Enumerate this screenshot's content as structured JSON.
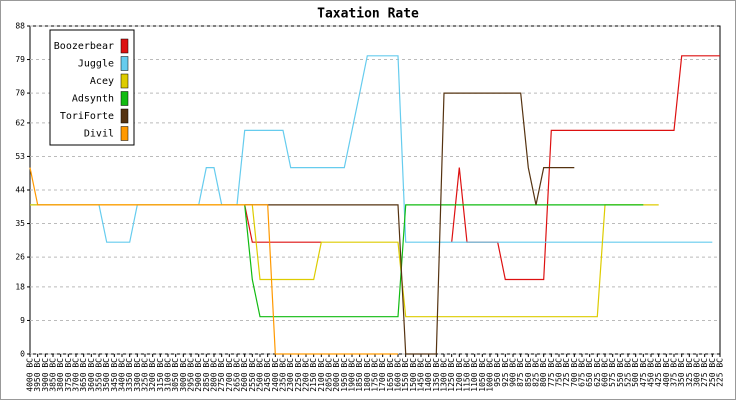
{
  "chart_data": {
    "type": "line",
    "title": "Taxation Rate",
    "categories": [
      "4000 BC",
      "3950 BC",
      "3900 BC",
      "3850 BC",
      "3800 BC",
      "3750 BC",
      "3700 BC",
      "3650 BC",
      "3600 BC",
      "3550 BC",
      "3500 BC",
      "3450 BC",
      "3400 BC",
      "3350 BC",
      "3300 BC",
      "3250 BC",
      "3200 BC",
      "3150 BC",
      "3100 BC",
      "3050 BC",
      "3000 BC",
      "2950 BC",
      "2900 BC",
      "2850 BC",
      "2800 BC",
      "2750 BC",
      "2700 BC",
      "2650 BC",
      "2600 BC",
      "2550 BC",
      "2500 BC",
      "2450 BC",
      "2400 BC",
      "2350 BC",
      "2300 BC",
      "2250 BC",
      "2200 BC",
      "2150 BC",
      "2100 BC",
      "2050 BC",
      "2000 BC",
      "1950 BC",
      "1900 BC",
      "1850 BC",
      "1800 BC",
      "1750 BC",
      "1700 BC",
      "1650 BC",
      "1600 BC",
      "1550 BC",
      "1500 BC",
      "1450 BC",
      "1400 BC",
      "1350 BC",
      "1300 BC",
      "1250 BC",
      "1200 BC",
      "1150 BC",
      "1100 BC",
      "1050 BC",
      "1000 BC",
      "950 BC",
      "925 BC",
      "900 BC",
      "875 BC",
      "850 BC",
      "825 BC",
      "800 BC",
      "775 BC",
      "750 BC",
      "725 BC",
      "700 BC",
      "675 BC",
      "650 BC",
      "625 BC",
      "600 BC",
      "575 BC",
      "550 BC",
      "525 BC",
      "500 BC",
      "475 BC",
      "450 BC",
      "425 BC",
      "400 BC",
      "375 BC",
      "350 BC",
      "325 BC",
      "300 BC",
      "275 BC",
      "250 BC",
      "225 BC"
    ],
    "series": [
      {
        "name": "Boozerbear",
        "color": "#dd1111",
        "values": [
          null,
          null,
          null,
          null,
          null,
          null,
          null,
          null,
          null,
          null,
          null,
          null,
          null,
          null,
          null,
          null,
          null,
          null,
          null,
          null,
          null,
          null,
          null,
          null,
          null,
          null,
          null,
          null,
          40,
          30,
          30,
          30,
          30,
          30,
          30,
          30,
          30,
          30,
          30,
          null,
          null,
          null,
          null,
          null,
          null,
          null,
          null,
          null,
          null,
          null,
          null,
          null,
          null,
          null,
          null,
          30,
          50,
          30,
          30,
          30,
          30,
          30,
          20,
          20,
          20,
          20,
          20,
          20,
          60,
          60,
          60,
          60,
          60,
          60,
          60,
          60,
          60,
          60,
          60,
          60,
          60,
          60,
          60,
          60,
          60,
          80,
          80,
          80,
          80,
          80,
          80
        ]
      },
      {
        "name": "Juggle",
        "color": "#66ccee",
        "values": [
          40,
          40,
          40,
          40,
          40,
          40,
          40,
          40,
          40,
          40,
          30,
          30,
          30,
          30,
          40,
          40,
          40,
          40,
          40,
          40,
          40,
          40,
          40,
          50,
          50,
          40,
          40,
          40,
          60,
          60,
          60,
          60,
          60,
          60,
          50,
          50,
          50,
          50,
          50,
          50,
          50,
          50,
          60,
          70,
          80,
          80,
          80,
          80,
          80,
          30,
          30,
          30,
          30,
          30,
          30,
          30,
          30,
          30,
          30,
          30,
          30,
          30,
          30,
          30,
          30,
          30,
          30,
          30,
          30,
          30,
          30,
          30,
          30,
          30,
          30,
          30,
          30,
          30,
          30,
          30,
          30,
          30,
          30,
          30,
          30,
          30,
          30,
          30,
          30,
          30,
          null
        ]
      },
      {
        "name": "Acey",
        "color": "#ddcc00",
        "values": [
          40,
          40,
          40,
          40,
          40,
          40,
          40,
          40,
          40,
          40,
          40,
          40,
          40,
          40,
          40,
          40,
          40,
          40,
          40,
          40,
          40,
          40,
          40,
          40,
          40,
          40,
          40,
          40,
          40,
          40,
          20,
          20,
          20,
          20,
          20,
          20,
          20,
          20,
          30,
          30,
          30,
          30,
          30,
          30,
          30,
          30,
          30,
          30,
          30,
          10,
          10,
          10,
          10,
          10,
          10,
          10,
          10,
          10,
          10,
          10,
          10,
          10,
          10,
          10,
          10,
          10,
          10,
          10,
          10,
          10,
          10,
          10,
          10,
          10,
          10,
          40,
          40,
          40,
          40,
          40,
          40,
          40,
          40,
          null,
          null,
          null,
          null,
          null,
          null,
          null,
          null
        ]
      },
      {
        "name": "Adsynth",
        "color": "#11bb11",
        "values": [
          null,
          null,
          null,
          null,
          null,
          null,
          null,
          null,
          null,
          null,
          null,
          null,
          null,
          null,
          null,
          null,
          null,
          null,
          null,
          null,
          null,
          null,
          null,
          null,
          null,
          null,
          null,
          null,
          40,
          20,
          10,
          10,
          10,
          10,
          10,
          10,
          10,
          10,
          10,
          10,
          10,
          10,
          10,
          10,
          10,
          10,
          10,
          10,
          10,
          40,
          40,
          40,
          40,
          40,
          40,
          40,
          40,
          40,
          40,
          40,
          40,
          40,
          40,
          40,
          40,
          40,
          40,
          40,
          40,
          40,
          40,
          40,
          40,
          40,
          40,
          40,
          40,
          40,
          40,
          40,
          40,
          null,
          null,
          null,
          null,
          null,
          null,
          null,
          null,
          null,
          null
        ]
      },
      {
        "name": "ToriForte",
        "color": "#553311",
        "values": [
          null,
          null,
          null,
          null,
          null,
          null,
          null,
          null,
          null,
          null,
          null,
          null,
          null,
          null,
          null,
          null,
          null,
          null,
          null,
          null,
          null,
          null,
          null,
          null,
          null,
          null,
          null,
          null,
          40,
          40,
          40,
          40,
          40,
          40,
          40,
          40,
          40,
          40,
          40,
          40,
          40,
          40,
          40,
          40,
          40,
          40,
          40,
          40,
          40,
          0,
          0,
          0,
          0,
          0,
          70,
          70,
          70,
          70,
          70,
          70,
          70,
          70,
          70,
          70,
          70,
          50,
          40,
          50,
          50,
          50,
          50,
          50,
          null,
          null,
          null,
          null,
          null,
          null,
          null,
          null,
          null,
          null,
          null,
          null,
          null,
          null,
          null,
          null,
          null,
          null,
          null
        ]
      },
      {
        "name": "Divil",
        "color": "#ff9900",
        "values": [
          50,
          40,
          40,
          40,
          40,
          40,
          40,
          40,
          40,
          40,
          40,
          40,
          40,
          40,
          40,
          40,
          40,
          40,
          40,
          40,
          40,
          40,
          40,
          40,
          40,
          40,
          40,
          40,
          40,
          40,
          40,
          40,
          0,
          0,
          0,
          0,
          0,
          0,
          0,
          0,
          0,
          0,
          0,
          0,
          0,
          0,
          0,
          0,
          0,
          null,
          null,
          null,
          null,
          null,
          null,
          null,
          null,
          null,
          null,
          null,
          null,
          null,
          null,
          null,
          null,
          null,
          null,
          null,
          null,
          null,
          null,
          null,
          null,
          null,
          null,
          null,
          null,
          null,
          null,
          null,
          null,
          null,
          null,
          null,
          null,
          null,
          null,
          null,
          null,
          null,
          null
        ]
      }
    ],
    "ylim": [
      0,
      88
    ],
    "yticks": [
      0,
      9,
      18,
      26,
      35,
      44,
      53,
      62,
      70,
      79,
      88
    ],
    "grid": true,
    "legend": "top-left"
  }
}
